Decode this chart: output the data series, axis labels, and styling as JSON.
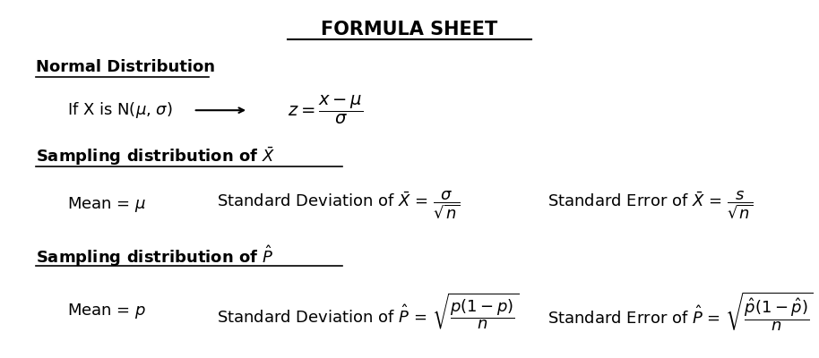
{
  "title": "FORMULA SHEET",
  "background_color": "#ffffff",
  "text_color": "#000000",
  "fig_width": 9.14,
  "fig_height": 4.0,
  "dpi": 100,
  "fs_title": 15,
  "fs_section": 13,
  "fs_formula": 13
}
